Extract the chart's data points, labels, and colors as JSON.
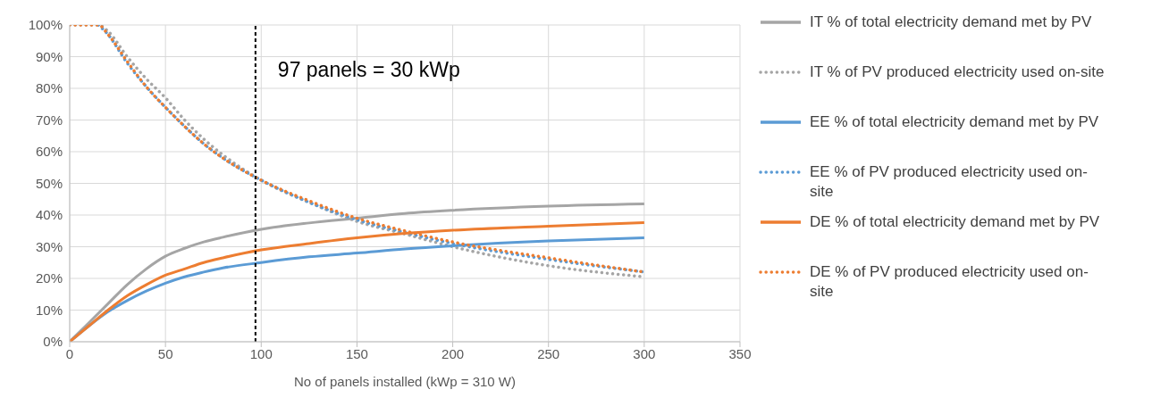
{
  "chart_data": {
    "type": "line",
    "xlabel": "No of panels installed (kWp = 310 W)",
    "xlim": [
      0,
      350
    ],
    "xticks": [
      0,
      50,
      100,
      150,
      200,
      250,
      300,
      350
    ],
    "ylim": [
      0,
      100
    ],
    "yticks": [
      {
        "value": 0,
        "label": "0%"
      },
      {
        "value": 10,
        "label": "10%"
      },
      {
        "value": 20,
        "label": "20%"
      },
      {
        "value": 30,
        "label": "30%"
      },
      {
        "value": 40,
        "label": "40%"
      },
      {
        "value": 50,
        "label": "50%"
      },
      {
        "value": 60,
        "label": "60%"
      },
      {
        "value": 70,
        "label": "70%"
      },
      {
        "value": 80,
        "label": "80%"
      },
      {
        "value": 90,
        "label": "90%"
      },
      {
        "value": 100,
        "label": "100%"
      }
    ],
    "grid": true,
    "legend": "right",
    "marker": "none",
    "ref_lines": [
      {
        "axis": "x",
        "value": 97,
        "label": "97 panels = 30 kWp",
        "color": "#000000",
        "line_style": "dashed"
      }
    ],
    "series": [
      {
        "name": "IT % of total electricity demand met by PV",
        "color": "#a5a5a5",
        "line_style": "solid",
        "x": [
          0,
          10,
          20,
          30,
          40,
          50,
          60,
          70,
          80,
          100,
          125,
          150,
          175,
          200,
          250,
          300
        ],
        "values": [
          0,
          6,
          12,
          18,
          23,
          27,
          29.5,
          31.5,
          33,
          35.5,
          37.5,
          39,
          40.5,
          41.5,
          42.8,
          43.5
        ]
      },
      {
        "name": "IT % of PV produced electricity used on-site",
        "color": "#a5a5a5",
        "line_style": "dotted",
        "x": [
          0,
          10,
          15,
          20,
          30,
          40,
          50,
          60,
          70,
          80,
          100,
          125,
          150,
          175,
          200,
          250,
          300
        ],
        "values": [
          100,
          100,
          100,
          98,
          90,
          83,
          77,
          70,
          64,
          59,
          51,
          44,
          38,
          34,
          30,
          24,
          20.5
        ]
      },
      {
        "name": "EE % of total electricity demand met by PV",
        "color": "#5b9bd5",
        "line_style": "solid",
        "x": [
          0,
          10,
          20,
          30,
          40,
          50,
          60,
          70,
          80,
          100,
          125,
          150,
          175,
          200,
          250,
          300
        ],
        "values": [
          0,
          5,
          9.5,
          13,
          16,
          18.5,
          20.5,
          22,
          23.3,
          25,
          26.8,
          28,
          29.3,
          30.3,
          31.8,
          32.8
        ]
      },
      {
        "name": "EE % of PV produced electricity used on-site",
        "color": "#5b9bd5",
        "line_style": "dotted",
        "x": [
          15,
          20,
          30,
          40,
          50,
          60,
          70,
          80,
          100,
          125,
          150,
          175,
          200,
          250,
          300
        ],
        "values": [
          100,
          97,
          88,
          80.5,
          74,
          68,
          62.5,
          58,
          51,
          44,
          38.5,
          34.5,
          31,
          26,
          22
        ]
      },
      {
        "name": "DE % of total electricity demand met by PV",
        "color": "#ed7d31",
        "line_style": "solid",
        "x": [
          0,
          10,
          20,
          30,
          40,
          50,
          60,
          70,
          80,
          100,
          125,
          150,
          175,
          200,
          250,
          300
        ],
        "values": [
          0,
          5,
          10,
          14.5,
          18,
          21,
          23,
          25,
          26.5,
          29,
          31,
          32.8,
          34.2,
          35.2,
          36.5,
          37.6
        ]
      },
      {
        "name": "DE % of PV produced electricity used on-site",
        "color": "#ed7d31",
        "line_style": "dotted",
        "x": [
          0,
          10,
          15,
          20,
          30,
          40,
          50,
          60,
          70,
          80,
          100,
          125,
          150,
          175,
          200,
          250,
          300
        ],
        "values": [
          100,
          100,
          100,
          97,
          88.5,
          80.5,
          74,
          68,
          62.5,
          58,
          51,
          44.5,
          39,
          35,
          31.5,
          26.5,
          22
        ]
      }
    ]
  }
}
